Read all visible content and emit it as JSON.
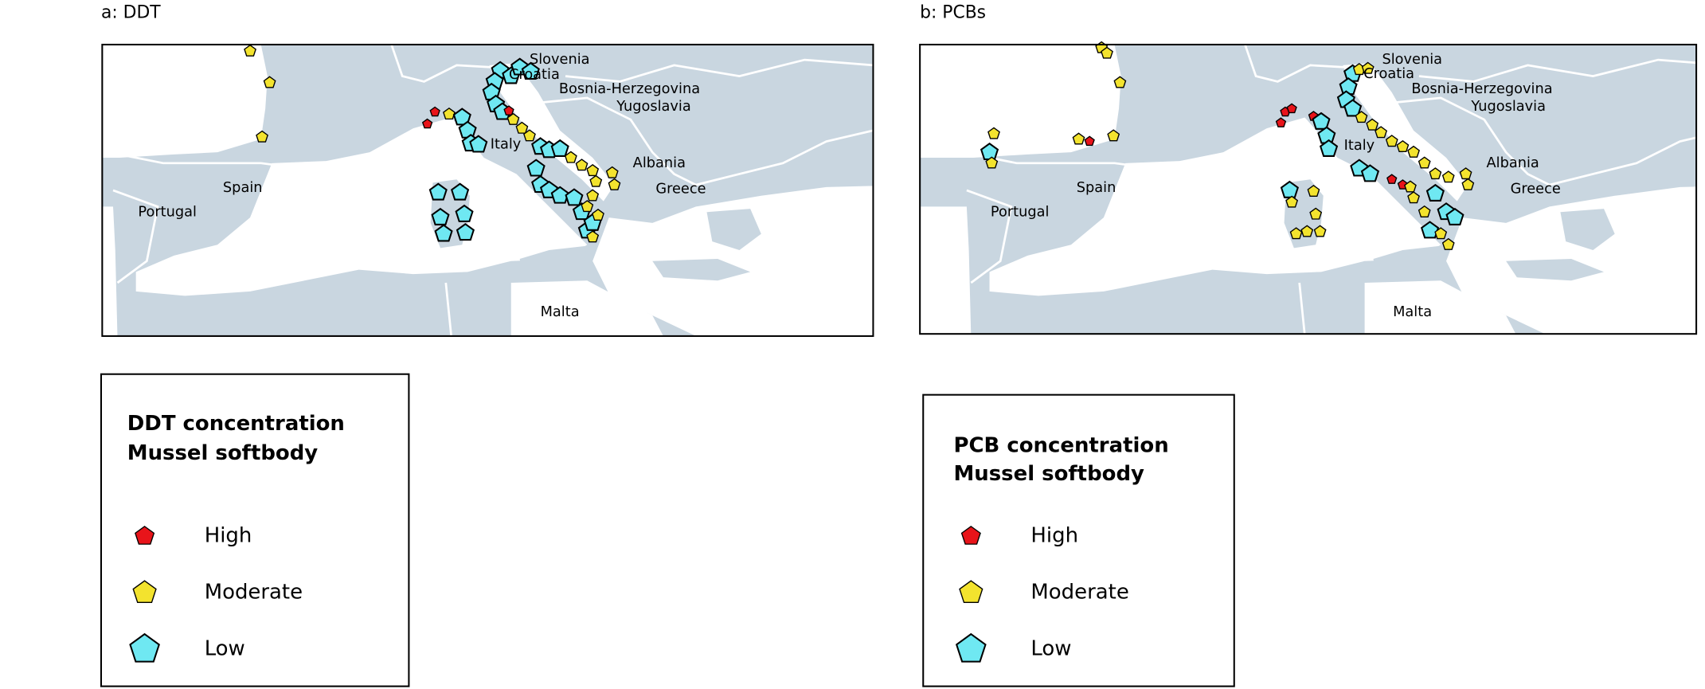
{
  "panels": [
    {
      "title": "a: DDT",
      "labels": [
        "Slovenia",
        "Croatia",
        "Bosnia-Herzegovina",
        "Yugoslavia",
        "Italy",
        "Albania",
        "Greece",
        "Spain",
        "Portugal",
        "Malta"
      ],
      "legend": {
        "title": [
          "DDT concentration",
          "Mussel softbody"
        ],
        "items": [
          "High",
          "Moderate",
          "Low"
        ]
      }
    },
    {
      "title": "b: PCBs",
      "labels": [
        "Slovenia",
        "Croatia",
        "Bosnia-Herzegovina",
        "Yugoslavia",
        "Italy",
        "Albania",
        "Greece",
        "Spain",
        "Portugal",
        "Malta"
      ],
      "legend": {
        "title": [
          "PCB concentration",
          "Mussel softbody"
        ],
        "items": [
          "High",
          "Moderate",
          "Low"
        ]
      }
    }
  ]
}
